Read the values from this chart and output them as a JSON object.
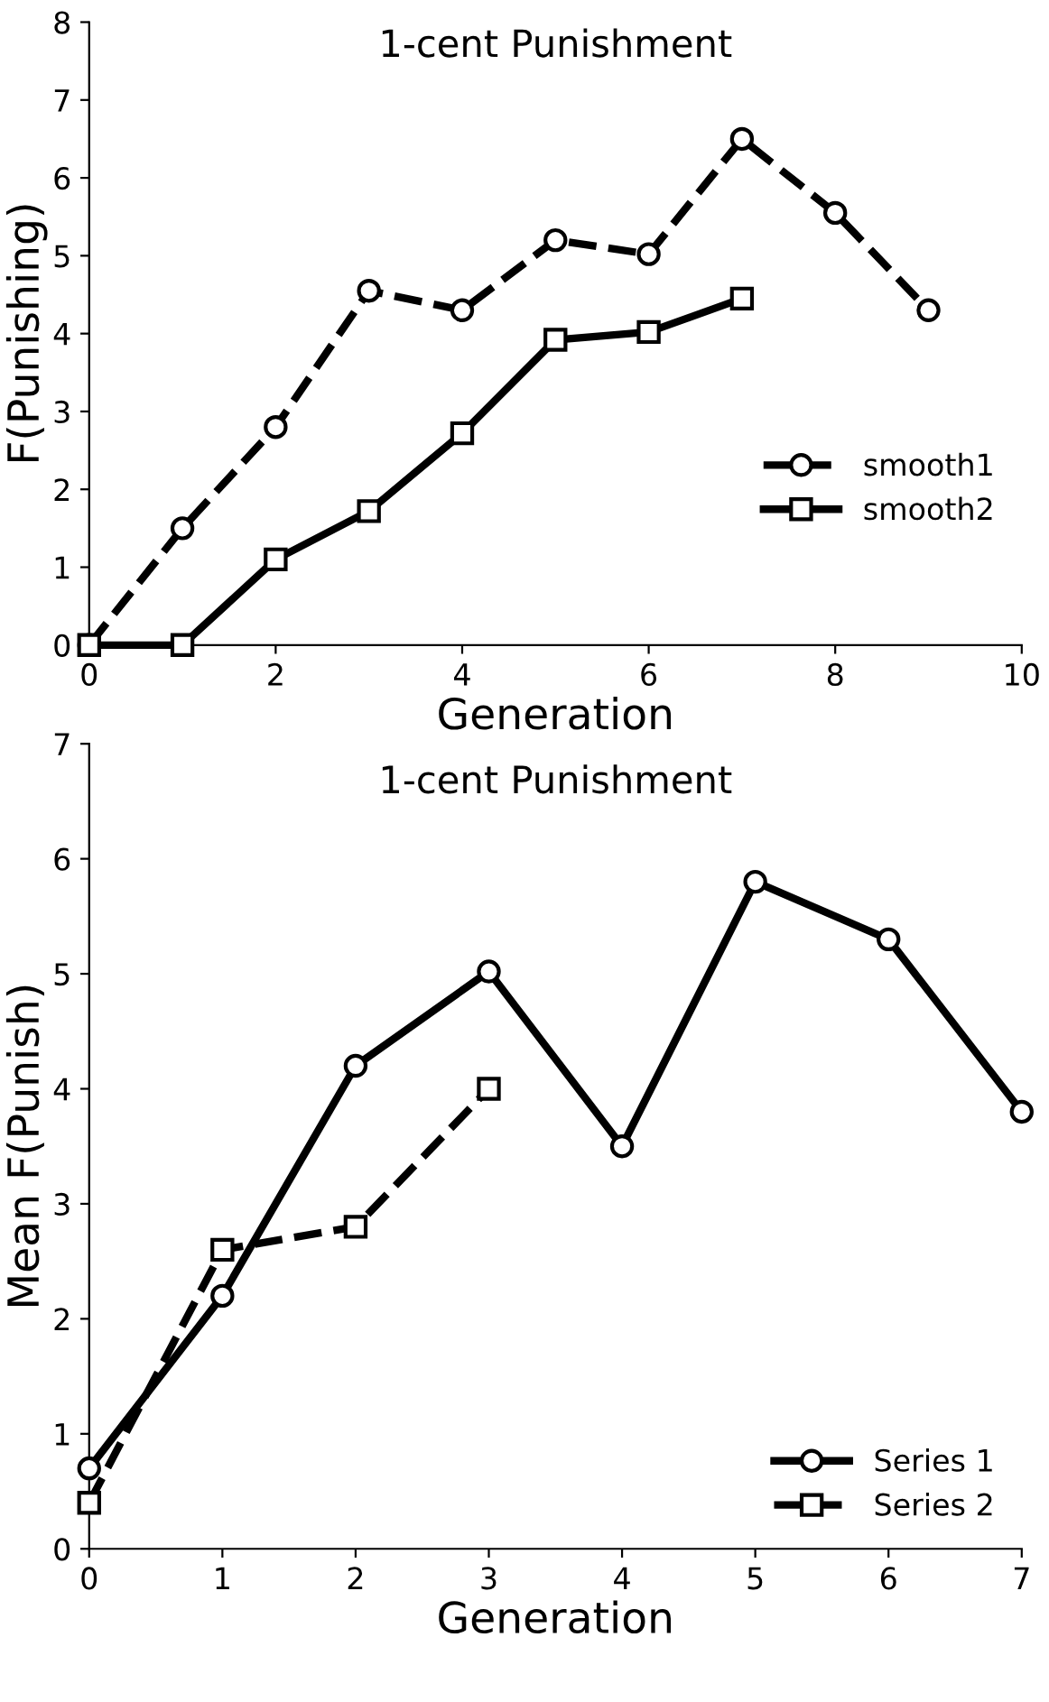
{
  "chart_data": [
    {
      "type": "line",
      "title": "1-cent Punishment",
      "xlabel": "Generation",
      "ylabel": "F(Punishing)",
      "xlim": [
        0,
        10
      ],
      "xticks": [
        0,
        2,
        4,
        6,
        8,
        10
      ],
      "ylim": [
        0,
        8
      ],
      "yticks": [
        0,
        1,
        2,
        3,
        4,
        5,
        6,
        7,
        8
      ],
      "legend": "right",
      "grid": false,
      "series": [
        {
          "name": "smooth1",
          "color": "#000000",
          "marker": "circle",
          "line_style": "dashed",
          "x": [
            0,
            1,
            2,
            3,
            4,
            5,
            6,
            7,
            8,
            9
          ],
          "values": [
            0,
            1.5,
            2.8,
            4.55,
            4.3,
            5.2,
            5.02,
            6.5,
            5.55,
            4.3
          ]
        },
        {
          "name": "smooth2",
          "color": "#000000",
          "marker": "square",
          "line_style": "solid",
          "x": [
            0,
            1,
            2,
            3,
            4,
            5,
            6,
            7
          ],
          "values": [
            0,
            0,
            1.1,
            1.72,
            2.72,
            3.92,
            4.02,
            4.45
          ]
        }
      ]
    },
    {
      "type": "line",
      "title": "1-cent Punishment",
      "xlabel": "Generation",
      "ylabel": "Mean F(Punish)",
      "xlim": [
        0,
        7
      ],
      "xticks": [
        0,
        1,
        2,
        3,
        4,
        5,
        6,
        7
      ],
      "ylim": [
        0,
        7
      ],
      "yticks": [
        0,
        1,
        2,
        3,
        4,
        5,
        6,
        7
      ],
      "legend": "bottom right",
      "grid": false,
      "series": [
        {
          "name": "Series 1",
          "color": "#000000",
          "marker": "circle",
          "line_style": "solid",
          "x": [
            0,
            1,
            2,
            3,
            4,
            5,
            6,
            7
          ],
          "values": [
            0.7,
            2.2,
            4.2,
            5.02,
            3.5,
            5.8,
            5.3,
            3.8
          ]
        },
        {
          "name": "Series 2",
          "color": "#000000",
          "marker": "square",
          "line_style": "dashed",
          "x": [
            0,
            1,
            2,
            3
          ],
          "values": [
            0.4,
            2.6,
            2.8,
            4.0
          ]
        }
      ]
    }
  ]
}
